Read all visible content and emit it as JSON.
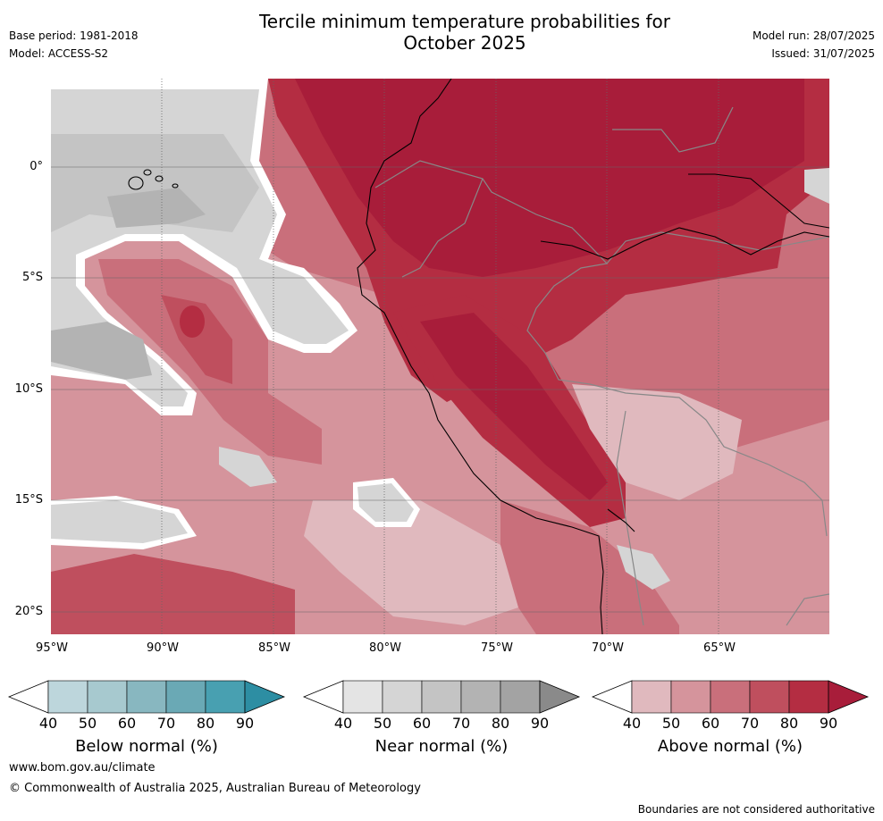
{
  "header": {
    "title_line1": "Tercile minimum temperature probabilities for",
    "title_line2": "October 2025",
    "base_period": "Base period: 1981-2018",
    "model": "Model: ACCESS-S2",
    "model_run": "Model run: 28/07/2025",
    "issued": "Issued: 31/07/2025"
  },
  "map": {
    "lat_labels": [
      "0°",
      "5°S",
      "10°S",
      "15°S",
      "20°S"
    ],
    "lon_labels": [
      "95°W",
      "90°W",
      "85°W",
      "80°W",
      "75°W",
      "70°W",
      "65°W"
    ]
  },
  "colorbars": [
    {
      "label": "Below normal (%)",
      "ticks": [
        "40",
        "50",
        "60",
        "70",
        "80",
        "90"
      ],
      "colors": [
        "#ffffff",
        "#bdd6dc",
        "#a7c9cf",
        "#88b7c0",
        "#6aa9b5",
        "#48a0b1",
        "#2d8ea3"
      ]
    },
    {
      "label": "Near normal (%)",
      "ticks": [
        "40",
        "50",
        "60",
        "70",
        "80",
        "90"
      ],
      "colors": [
        "#ffffff",
        "#e4e4e4",
        "#d5d5d5",
        "#c4c4c4",
        "#b3b3b3",
        "#a3a3a3",
        "#8a8a8a"
      ]
    },
    {
      "label": "Above normal (%)",
      "ticks": [
        "40",
        "50",
        "60",
        "70",
        "80",
        "90"
      ],
      "colors": [
        "#ffffff",
        "#e0b9be",
        "#d5949c",
        "#c96f7b",
        "#bf4f5e",
        "#b42d42",
        "#a81d3a"
      ]
    }
  ],
  "footer": {
    "website": "www.bom.gov.au/climate",
    "copyright": "© Commonwealth of Australia 2025, Australian Bureau of Meteorology",
    "disclaimer": "Boundaries are not considered authoritative"
  }
}
